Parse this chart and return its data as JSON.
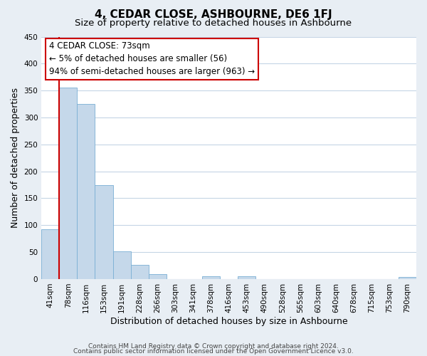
{
  "title": "4, CEDAR CLOSE, ASHBOURNE, DE6 1FJ",
  "subtitle": "Size of property relative to detached houses in Ashbourne",
  "xlabel": "Distribution of detached houses by size in Ashbourne",
  "ylabel": "Number of detached properties",
  "bar_labels": [
    "41sqm",
    "78sqm",
    "116sqm",
    "153sqm",
    "191sqm",
    "228sqm",
    "266sqm",
    "303sqm",
    "341sqm",
    "378sqm",
    "416sqm",
    "453sqm",
    "490sqm",
    "528sqm",
    "565sqm",
    "603sqm",
    "640sqm",
    "678sqm",
    "715sqm",
    "753sqm",
    "790sqm"
  ],
  "bar_values": [
    93,
    356,
    325,
    174,
    52,
    26,
    9,
    0,
    0,
    5,
    0,
    5,
    0,
    0,
    0,
    0,
    0,
    0,
    0,
    0,
    4
  ],
  "bar_color": "#c5d8ea",
  "bar_edge_color": "#7aafd4",
  "red_line_bar_index": 0,
  "ylim": [
    0,
    450
  ],
  "yticks": [
    0,
    50,
    100,
    150,
    200,
    250,
    300,
    350,
    400,
    450
  ],
  "annotation_title": "4 CEDAR CLOSE: 73sqm",
  "annotation_line1": "← 5% of detached houses are smaller (56)",
  "annotation_line2": "94% of semi-detached houses are larger (963) →",
  "annotation_box_color": "#ffffff",
  "annotation_box_edge_color": "#cc0000",
  "footer_line1": "Contains HM Land Registry data © Crown copyright and database right 2024.",
  "footer_line2": "Contains public sector information licensed under the Open Government Licence v3.0.",
  "background_color": "#e8eef4",
  "plot_background_color": "#ffffff",
  "grid_color": "#c5d5e5",
  "title_fontsize": 11,
  "subtitle_fontsize": 9.5,
  "axis_label_fontsize": 9,
  "tick_fontsize": 7.5,
  "footer_fontsize": 6.5,
  "annotation_fontsize": 8.5
}
